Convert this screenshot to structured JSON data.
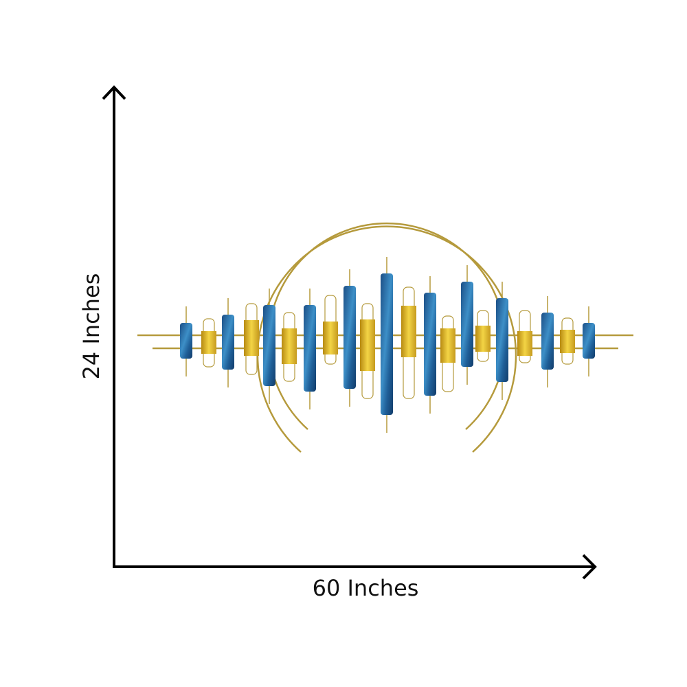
{
  "dimensions": {
    "height_label": "24 Inches",
    "width_label": "60 Inches"
  }
}
